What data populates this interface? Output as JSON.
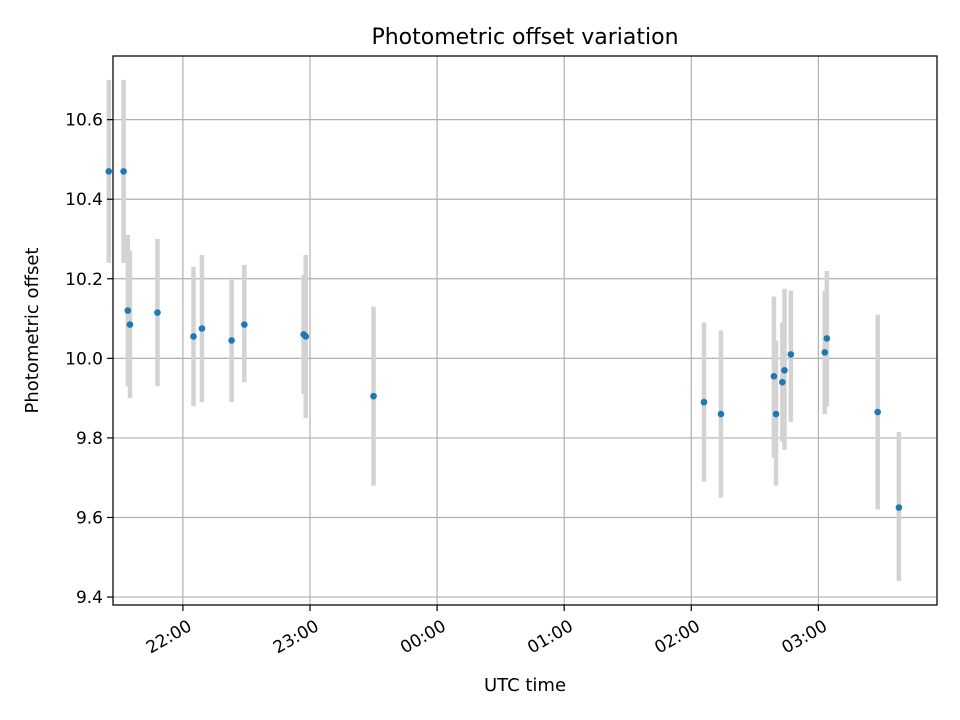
{
  "chart_data": {
    "type": "scatter",
    "title": "Photometric offset variation",
    "xlabel": "UTC time",
    "ylabel": "Photometric offset",
    "xlim": [
      "21:27",
      "03:56"
    ],
    "ylim": [
      9.38,
      10.76
    ],
    "x_ticks": [
      "22:00",
      "23:00",
      "00:00",
      "01:00",
      "02:00",
      "03:00"
    ],
    "y_ticks": [
      9.4,
      9.6,
      9.8,
      10.0,
      10.2,
      10.4,
      10.6
    ],
    "grid": true,
    "marker_color": "#1f77b4",
    "errorbar_color": "#d3d3d3",
    "points": [
      {
        "x": "21:25",
        "y": 10.47,
        "err_low": 10.24,
        "err_high": 10.7
      },
      {
        "x": "21:32",
        "y": 10.47,
        "err_low": 10.24,
        "err_high": 10.7
      },
      {
        "x": "21:34",
        "y": 10.12,
        "err_low": 9.93,
        "err_high": 10.31
      },
      {
        "x": "21:35",
        "y": 10.085,
        "err_low": 9.9,
        "err_high": 10.27
      },
      {
        "x": "21:48",
        "y": 10.115,
        "err_low": 9.93,
        "err_high": 10.3
      },
      {
        "x": "22:05",
        "y": 10.055,
        "err_low": 9.88,
        "err_high": 10.23
      },
      {
        "x": "22:09",
        "y": 10.075,
        "err_low": 9.89,
        "err_high": 10.26
      },
      {
        "x": "22:23",
        "y": 10.045,
        "err_low": 9.89,
        "err_high": 10.2
      },
      {
        "x": "22:29",
        "y": 10.085,
        "err_low": 9.94,
        "err_high": 10.235
      },
      {
        "x": "22:57",
        "y": 10.06,
        "err_low": 9.91,
        "err_high": 10.21
      },
      {
        "x": "22:58",
        "y": 10.055,
        "err_low": 9.85,
        "err_high": 10.26
      },
      {
        "x": "23:30",
        "y": 9.905,
        "err_low": 9.68,
        "err_high": 10.13
      },
      {
        "x": "02:06",
        "y": 9.89,
        "err_low": 9.69,
        "err_high": 10.09
      },
      {
        "x": "02:14",
        "y": 9.86,
        "err_low": 9.65,
        "err_high": 10.07
      },
      {
        "x": "02:39",
        "y": 9.955,
        "err_low": 9.75,
        "err_high": 10.155
      },
      {
        "x": "02:40",
        "y": 9.86,
        "err_low": 9.68,
        "err_high": 10.045
      },
      {
        "x": "02:43",
        "y": 9.94,
        "err_low": 9.79,
        "err_high": 10.09
      },
      {
        "x": "02:44",
        "y": 9.97,
        "err_low": 9.77,
        "err_high": 10.175
      },
      {
        "x": "02:47",
        "y": 10.01,
        "err_low": 9.84,
        "err_high": 10.17
      },
      {
        "x": "03:03",
        "y": 10.015,
        "err_low": 9.86,
        "err_high": 10.17
      },
      {
        "x": "03:04",
        "y": 10.05,
        "err_low": 9.88,
        "err_high": 10.22
      },
      {
        "x": "03:28",
        "y": 9.865,
        "err_low": 9.62,
        "err_high": 10.11
      },
      {
        "x": "03:38",
        "y": 9.625,
        "err_low": 9.44,
        "err_high": 9.815
      }
    ]
  }
}
